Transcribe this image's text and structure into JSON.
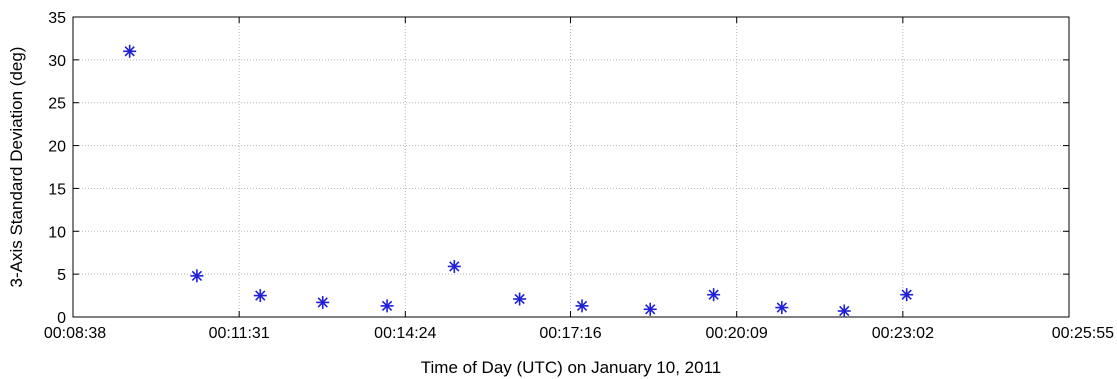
{
  "chart_data": {
    "type": "scatter",
    "xlabel": "Time of Day (UTC) on January 10, 2011",
    "ylabel": "3-Axis Standard Deviation (deg)",
    "x_ticks": [
      "00:08:38",
      "00:11:31",
      "00:14:24",
      "00:17:16",
      "00:20:09",
      "00:23:02",
      "00:25:55"
    ],
    "y_ticks": [
      "0",
      "5",
      "10",
      "15",
      "20",
      "25",
      "30",
      "35"
    ],
    "xlim": [
      "00:08:38",
      "00:25:55"
    ],
    "ylim": [
      0,
      35
    ],
    "grid": true,
    "marker": "asterisk",
    "marker_color": "#1f1fd6",
    "series": [
      {
        "x": [
          "00:09:37",
          "00:10:47",
          "00:11:53",
          "00:12:58",
          "00:14:05",
          "00:15:15",
          "00:16:23",
          "00:17:28",
          "00:18:39",
          "00:19:45",
          "00:20:56",
          "00:22:01",
          "00:23:06"
        ],
        "y": [
          31,
          4.8,
          2.5,
          1.7,
          1.3,
          5.9,
          2.1,
          1.3,
          0.9,
          2.6,
          1.1,
          0.7,
          2.6
        ]
      }
    ]
  }
}
